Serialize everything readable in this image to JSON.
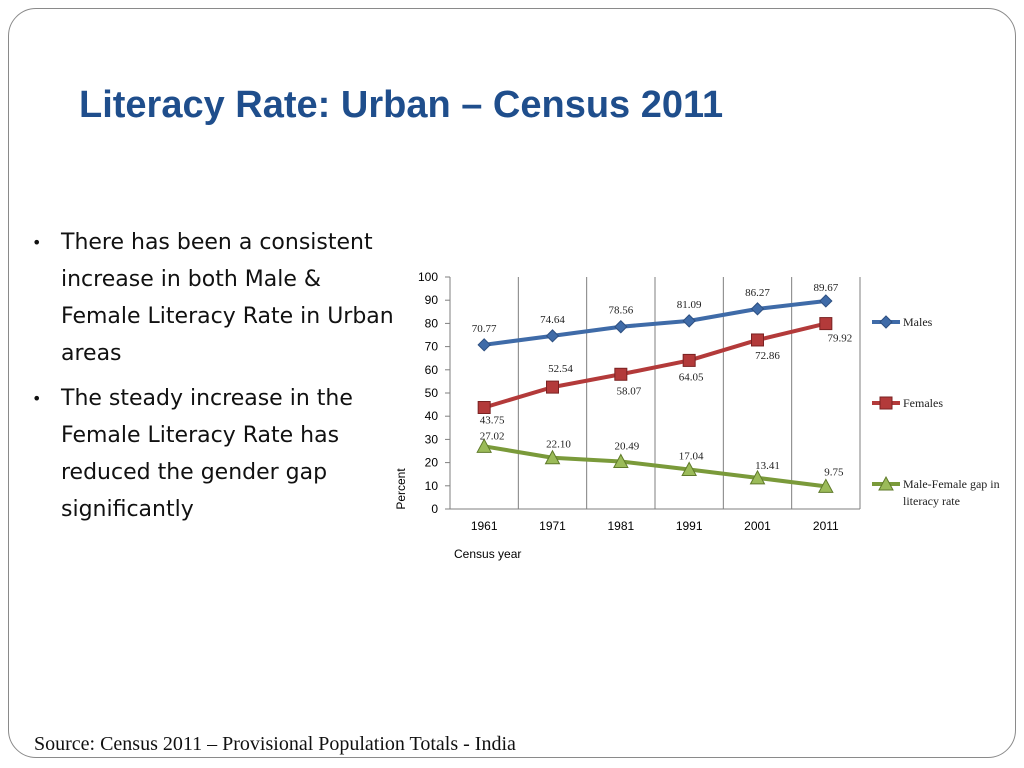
{
  "slide": {
    "title": "Literacy Rate: Urban – Census 2011",
    "bullets": [
      "There has been a consistent increase in both Male & Female Literacy Rate in Urban areas",
      "The steady increase in the Female Literacy Rate has reduced the gender gap significantly"
    ],
    "source": "Source: Census 2011 – Provisional Population Totals - India"
  },
  "chart_data": {
    "type": "line",
    "categories": [
      "1961",
      "1971",
      "1981",
      "1991",
      "2001",
      "2011"
    ],
    "series": [
      {
        "name": "Males",
        "color": "#3F6BA8",
        "marker": "diamond",
        "values": [
          70.77,
          74.64,
          78.56,
          81.09,
          86.27,
          89.67
        ],
        "labels": [
          "70.77",
          "74.64",
          "78.56",
          "81.09",
          "86.27",
          "89.67"
        ]
      },
      {
        "name": "Females",
        "color": "#B33A3A",
        "marker": "square",
        "values": [
          43.75,
          52.54,
          58.07,
          64.05,
          72.86,
          79.92
        ],
        "labels": [
          "43.75",
          "52.54",
          "58.07",
          "64.05",
          "72.86",
          "79.92"
        ]
      },
      {
        "name": "Male-Female gap in literacy rate",
        "color": "#7A9A3A",
        "marker": "triangle",
        "values": [
          27.02,
          22.1,
          20.49,
          17.04,
          13.41,
          9.75
        ],
        "labels": [
          "27.02",
          "22.10",
          "20.49",
          "17.04",
          "13.41",
          "9.75"
        ]
      }
    ],
    "y_ticks": [
      "0",
      "10",
      "20",
      "30",
      "40",
      "50",
      "60",
      "70",
      "80",
      "90",
      "100"
    ],
    "ylim": [
      0,
      100
    ],
    "xlabel": "Census year",
    "ylabel": "Percent",
    "grid": "vertical",
    "legend": "right"
  }
}
